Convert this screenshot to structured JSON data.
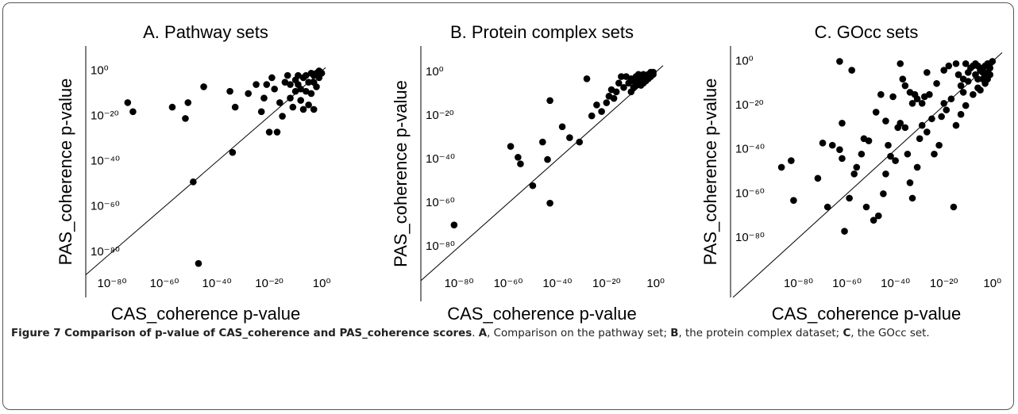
{
  "chart_data": [
    {
      "type": "scatter",
      "title": "A. Pathway sets",
      "xlabel": "CAS_coherence p-value",
      "ylabel": "PAS_coherence p-value",
      "color": "#000000",
      "log_scale": true,
      "xlim": [
        1e-90,
        30
      ],
      "ylim": [
        1e-100,
        100000000000.0
      ],
      "xticks": [
        {
          "value": 1e-80,
          "label": "10⁻⁸⁰"
        },
        {
          "value": 1e-60,
          "label": "10⁻⁶⁰"
        },
        {
          "value": 1e-40,
          "label": "10⁻⁴⁰"
        },
        {
          "value": 1e-20,
          "label": "10⁻²⁰"
        },
        {
          "value": 1,
          "label": "10⁰"
        }
      ],
      "yticks": [
        {
          "value": 1e-80,
          "label": "10⁻⁸⁰"
        },
        {
          "value": 1e-60,
          "label": "10⁻⁶⁰"
        },
        {
          "value": 1e-40,
          "label": "10⁻⁴⁰"
        },
        {
          "value": 1e-20,
          "label": "10⁻²⁰"
        },
        {
          "value": 1,
          "label": "10⁰"
        }
      ],
      "x": [
        1e-74,
        1e-72,
        1e-57,
        1e-51,
        1e-52,
        1e-45,
        1e-35,
        1e-33,
        1e-34,
        1e-49,
        1e-47,
        1e-28,
        1e-25,
        1e-22,
        1e-20,
        1e-17,
        1e-15,
        1e-12,
        1e-10,
        1e-08,
        1e-06,
        1e-05,
        0.001,
        0.01,
        0.1,
        1e-14,
        1e-18,
        1e-11,
        1e-09,
        1e-07,
        0.0001,
        0.001,
        0.1,
        1e-05,
        1e-13,
        1e-16,
        1e-19,
        1e-06,
        1e-08,
        0.01,
        1,
        0.0001,
        1e-10,
        1e-12,
        1e-21,
        1e-07,
        1e-23,
        0.001,
        0.3,
        1e-09
      ],
      "values": [
        1e-14,
        1e-18,
        1e-16,
        1e-14,
        1e-21,
        1e-07,
        1e-09,
        1e-16,
        1e-36,
        1e-49,
        1e-85,
        1e-10,
        1e-06,
        1e-12,
        1e-27,
        1e-27,
        1e-20,
        1e-12,
        0.0001,
        1e-08,
        0.01,
        1e-15,
        1e-05,
        0.1,
        1,
        1e-05,
        1e-08,
        1e-16,
        1e-06,
        1e-17,
        1e-10,
        0.01,
        0.001,
        1e-05,
        0.01,
        1e-14,
        0.001,
        1e-09,
        1e-13,
        1e-07,
        0.1,
        0.1,
        1e-09,
        1e-06,
        1e-06,
        0.001,
        1e-18,
        1e-17,
        0.3,
        0.01
      ]
    },
    {
      "type": "scatter",
      "title": "B. Protein complex sets",
      "xlabel": "CAS_coherence p-value",
      "ylabel": "PAS_coherence p-value",
      "color": "#000000",
      "log_scale": true,
      "xlim": [
        3e-96,
        1000.0
      ],
      "ylim": [
        1e-105,
        1000000000000.0
      ],
      "xticks": [
        {
          "value": 1e-80,
          "label": "10⁻⁸⁰"
        },
        {
          "value": 1e-60,
          "label": "10⁻⁶⁰"
        },
        {
          "value": 1e-40,
          "label": "10⁻⁴⁰"
        },
        {
          "value": 1e-20,
          "label": "10⁻²⁰"
        },
        {
          "value": 1,
          "label": "10⁰"
        }
      ],
      "yticks": [
        {
          "value": 1e-80,
          "label": "10⁻⁸⁰"
        },
        {
          "value": 1e-60,
          "label": "10⁻⁶⁰"
        },
        {
          "value": 1e-40,
          "label": "10⁻⁴⁰"
        },
        {
          "value": 1e-20,
          "label": "10⁻²⁰"
        },
        {
          "value": 1,
          "label": "10⁰"
        }
      ],
      "x": [
        1e-82,
        1e-59,
        1e-55,
        1e-56,
        1e-50,
        1e-46,
        1e-44,
        1e-43,
        1e-43,
        1e-38,
        1e-35,
        1e-31,
        1e-28,
        1e-26,
        1e-22,
        1e-20,
        1e-18,
        1e-17,
        1e-15,
        1e-13,
        1e-12,
        1e-10,
        1e-09,
        1e-08,
        1e-07,
        1e-06,
        1e-05,
        0.0001,
        0.001,
        0.01,
        0.1,
        1e-11,
        1e-14,
        1e-16,
        1e-19,
        1e-24,
        1e-07,
        1e-05,
        0.001,
        0.01,
        0.1,
        1e-06,
        1e-09,
        0.0001,
        1e-08,
        1e-10
      ],
      "values": [
        1e-70,
        1e-34,
        1e-42,
        1e-39,
        1e-52,
        1e-32,
        1e-40,
        1e-13,
        1e-60,
        1e-25,
        1e-30,
        1e-32,
        0.001,
        1e-20,
        1e-18,
        1e-14,
        1e-08,
        1e-12,
        1e-05,
        1e-07,
        0.01,
        1e-09,
        0.0001,
        1e-06,
        0.1,
        0.001,
        1e-05,
        0.01,
        0.1,
        1,
        1,
        1e-05,
        0.01,
        1e-09,
        1e-11,
        1e-15,
        0.0001,
        0.1,
        0.001,
        0.01,
        0.1,
        1e-06,
        1e-07,
        0.0001,
        0.01,
        0.001
      ]
    },
    {
      "type": "scatter",
      "title": "C. GOcc sets",
      "xlabel": "CAS_coherence p-value",
      "ylabel": "PAS_coherence p-value",
      "color": "#000000",
      "log_scale": true,
      "xlim": [
        1e-108,
        10000.0
      ],
      "ylim": [
        1e-107,
        10000000.0
      ],
      "xticks": [
        {
          "value": 1e-80,
          "label": "10⁻⁸⁰"
        },
        {
          "value": 1e-60,
          "label": "10⁻⁶⁰"
        },
        {
          "value": 1e-40,
          "label": "10⁻⁴⁰"
        },
        {
          "value": 1e-20,
          "label": "10⁻²⁰"
        },
        {
          "value": 1,
          "label": "10⁰"
        }
      ],
      "yticks": [
        {
          "value": 1e-80,
          "label": "10⁻⁸⁰"
        },
        {
          "value": 1e-60,
          "label": "10⁻⁶⁰"
        },
        {
          "value": 1e-40,
          "label": "10⁻⁴⁰"
        },
        {
          "value": 1e-20,
          "label": "10⁻²⁰"
        },
        {
          "value": 1,
          "label": "10⁰"
        }
      ],
      "x": [
        1e-87,
        1e-83,
        1e-82,
        1e-72,
        1e-70,
        1e-68,
        1e-66,
        1e-63,
        1e-62,
        1e-61,
        1e-62,
        1e-59,
        1e-57,
        1e-56,
        1e-52,
        1e-53,
        1e-51,
        1e-49,
        1e-47,
        1e-45,
        1e-44,
        1e-43,
        1e-42,
        1e-40,
        1e-39,
        1e-38,
        1e-36,
        1e-35,
        1e-34,
        1e-33,
        1e-31,
        1e-30,
        1e-29,
        1e-27,
        1e-25,
        1e-24,
        1e-22,
        1e-21,
        1e-20,
        1e-19,
        1e-17,
        1e-15,
        1e-13,
        1e-12,
        1e-11,
        1e-10,
        1e-08,
        1e-07,
        1e-06,
        1e-05,
        0.0001,
        0.001,
        0.01,
        0.1,
        1e-63,
        1e-58,
        1e-38,
        1e-37,
        1e-36,
        1e-34,
        1e-32,
        1e-28,
        1e-26,
        1e-16,
        1e-18,
        1e-15,
        1e-14,
        1e-09,
        1e-06,
        1e-23,
        1e-27,
        0.1,
        0.01,
        0.0001,
        0.001,
        1e-05,
        1e-08,
        1e-10,
        1e-12,
        1,
        0.1,
        0.01,
        1e-11,
        1e-13,
        1e-33,
        1e-31,
        1e-29,
        1e-41,
        1e-46,
        1e-48,
        1e-54,
        1e-44,
        1e-20,
        1e-07,
        1e-06,
        0.0001,
        0.001
      ],
      "values": [
        1e-48,
        1e-45,
        1e-63,
        1e-53,
        1e-37,
        1e-66,
        1e-38,
        1e-40,
        1e-28,
        1e-77,
        1e-44,
        1e-62,
        1e-51,
        1e-48,
        1e-66,
        1e-35,
        1e-36,
        1e-72,
        1e-70,
        1e-60,
        1e-51,
        1e-38,
        1e-43,
        1e-45,
        1e-30,
        1e-28,
        1e-30,
        1e-42,
        1e-55,
        1e-62,
        1e-48,
        1e-35,
        1e-29,
        1e-32,
        1e-26,
        1e-42,
        1e-38,
        1e-25,
        1e-19,
        1e-22,
        1e-17,
        1e-29,
        1e-24,
        1e-14,
        1e-20,
        1e-09,
        1e-15,
        1e-06,
        1e-12,
        0.0001,
        1e-08,
        0.01,
        1e-05,
        0.1,
        1,
        0.0001,
        0.1,
        1e-08,
        1e-11,
        1e-14,
        1e-15,
        1e-16,
        1e-15,
        1e-66,
        0.01,
        0.1,
        1e-06,
        0.001,
        1e-08,
        1e-10,
        1e-05,
        0.001,
        1e-08,
        0.001,
        1e-10,
        1e-13,
        0.01,
        1e-05,
        1e-08,
        1,
        1e-06,
        0.1,
        0.1,
        1e-11,
        1e-19,
        1e-17,
        1e-19,
        1e-16,
        1e-15,
        1e-23,
        1e-42,
        1e-27,
        0.0001,
        0.1,
        0.01,
        1e-05,
        1e-07
      ]
    }
  ],
  "caption": {
    "segments": [
      {
        "text": "Figure 7 Comparison of p-value of CAS_coherence and PAS_coherence scores",
        "bold": true
      },
      {
        "text": ". "
      },
      {
        "text": "A",
        "bold": true
      },
      {
        "text": ", Comparison on the pathway set; "
      },
      {
        "text": "B",
        "bold": true
      },
      {
        "text": ", the protein complex dataset; "
      },
      {
        "text": "C",
        "bold": true
      },
      {
        "text": ", the GOcc set."
      }
    ]
  }
}
